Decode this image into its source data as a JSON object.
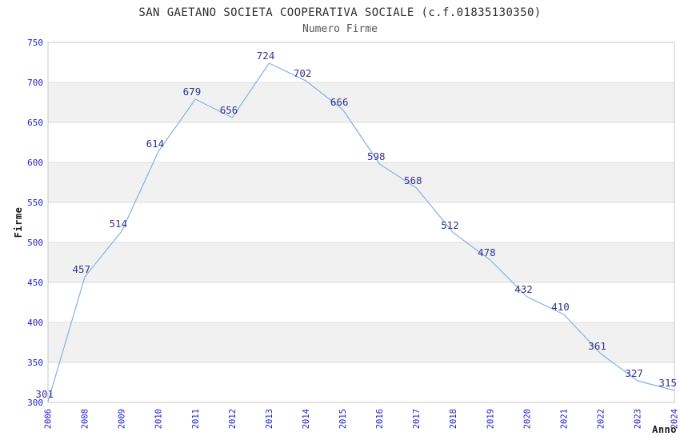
{
  "chart_data": {
    "type": "line",
    "title": "SAN GAETANO SOCIETA COOPERATIVA SOCIALE (c.f.01835130350)",
    "subtitle": "Numero Firme",
    "xlabel": "Anno",
    "ylabel": "Firme",
    "categories": [
      "2006",
      "2008",
      "2009",
      "2010",
      "2011",
      "2012",
      "2013",
      "2014",
      "2015",
      "2016",
      "2017",
      "2018",
      "2019",
      "2020",
      "2021",
      "2022",
      "2023",
      "2024"
    ],
    "series": [
      {
        "name": "Numero Firme",
        "values": [
          301,
          457,
          514,
          614,
          679,
          656,
          724,
          702,
          666,
          598,
          568,
          512,
          478,
          432,
          410,
          361,
          327,
          315
        ]
      }
    ],
    "ylim": [
      300,
      750
    ],
    "ytick_step": 50,
    "grid": "horizontal",
    "alternating_bands": true,
    "point_labels": true,
    "legend": "none",
    "colors": {
      "line": "#82b1e2",
      "point_label": "#333390",
      "tick_label": "#2222d0",
      "band": "#f1f1f1",
      "grid": "#dddddd",
      "border": "#c8c8c8",
      "title": "#2e2e2e",
      "subtitle": "#555555",
      "axis_title": "#1a1a1a",
      "background": "#ffffff"
    }
  }
}
